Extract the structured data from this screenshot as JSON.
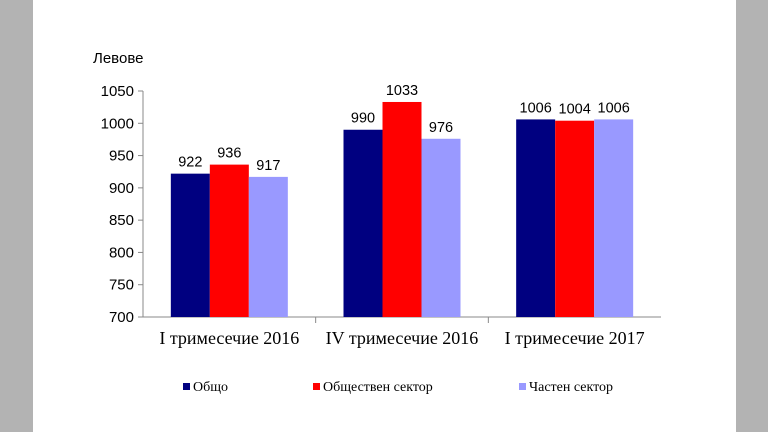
{
  "chart_data": {
    "type": "bar",
    "ylabel": "Левове",
    "ylim": [
      700,
      1050
    ],
    "ytick_step": 50,
    "categories": [
      "I тримесечие 2016",
      "IV тримесечие 2016",
      "I тримесечие 2017"
    ],
    "series": [
      {
        "name": "Общо",
        "values": [
          922,
          990,
          1006
        ],
        "color": "#000080"
      },
      {
        "name": "Обществен сектор",
        "values": [
          936,
          1033,
          1004
        ],
        "color": "#ff0000"
      },
      {
        "name": "Частен сектор",
        "values": [
          917,
          976,
          1006
        ],
        "color": "#9999ff"
      }
    ],
    "grid": false,
    "legend": "bottom"
  }
}
